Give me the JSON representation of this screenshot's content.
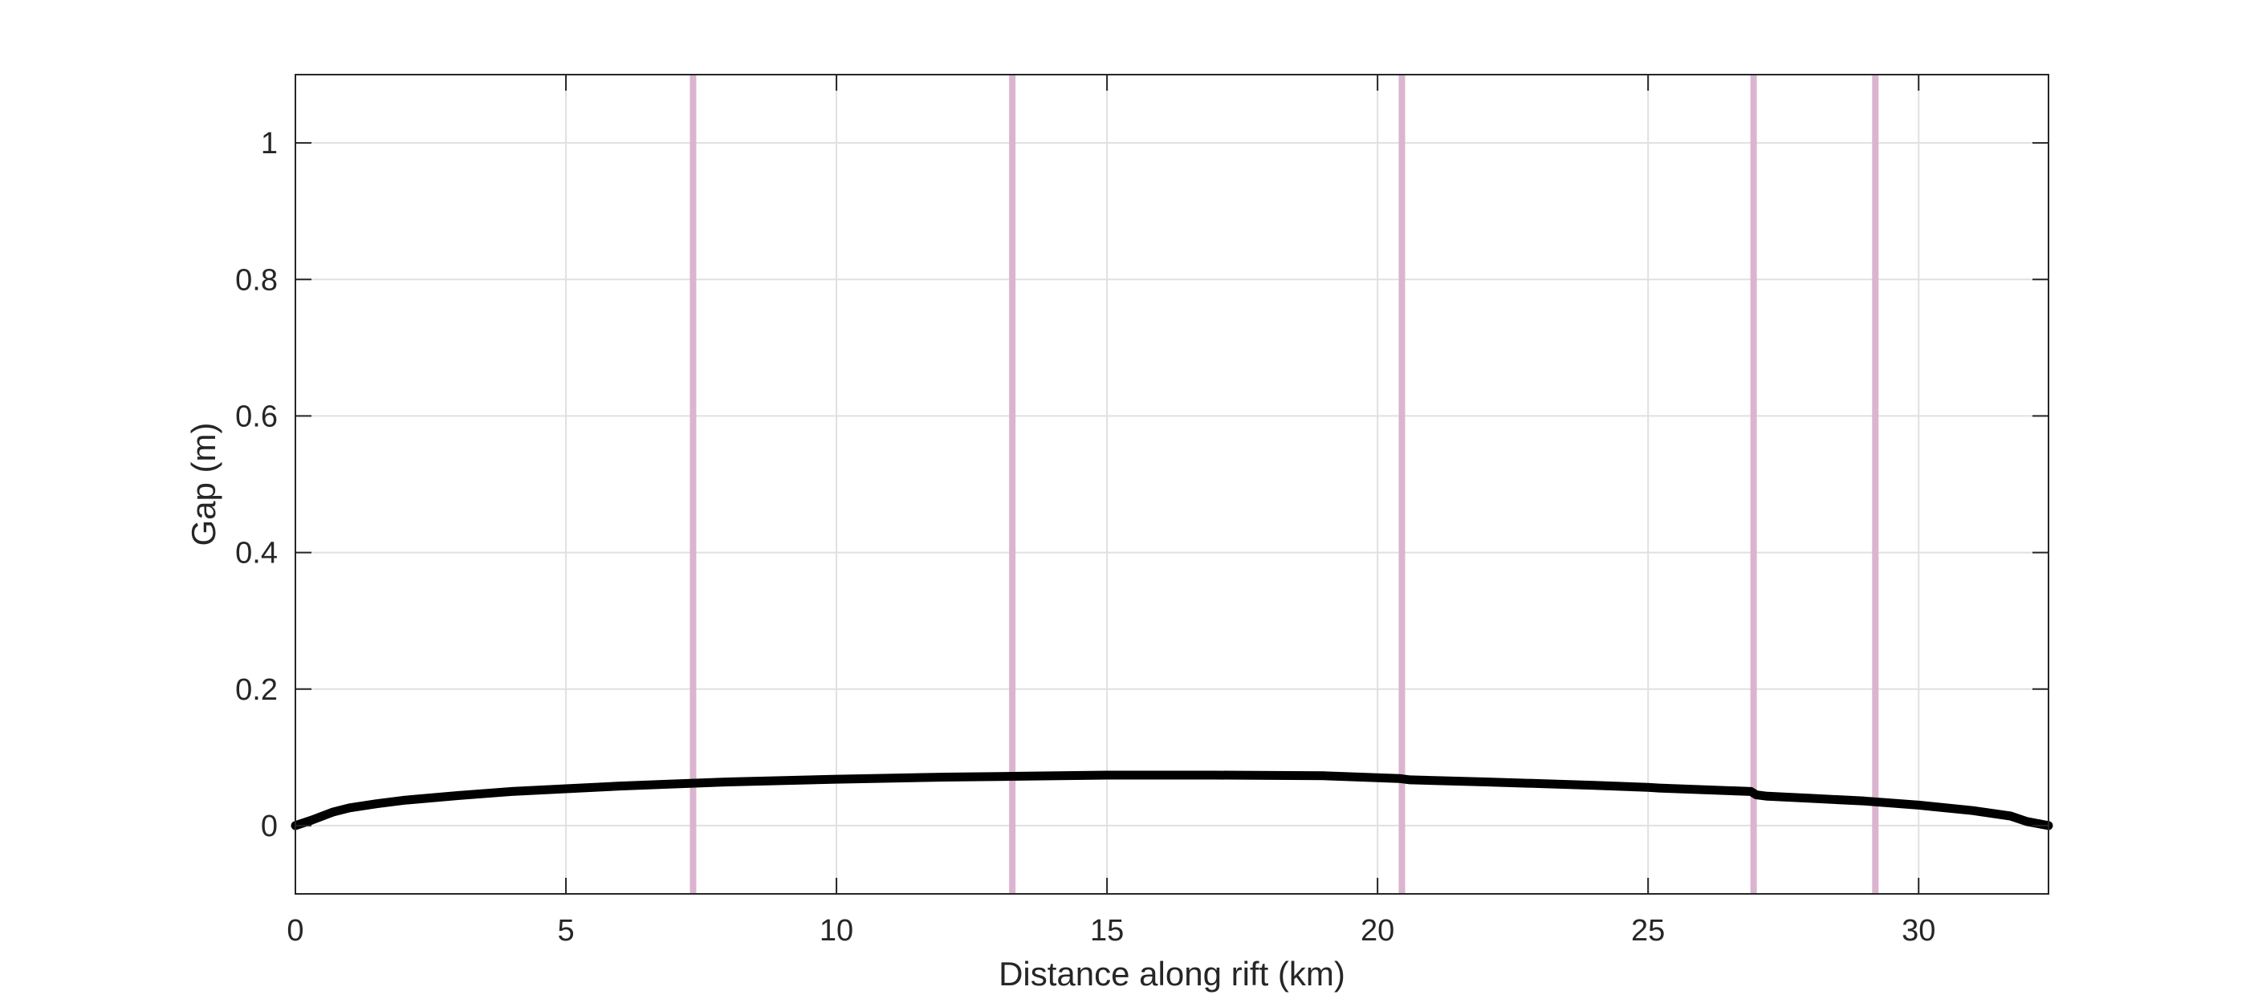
{
  "chart_data": {
    "type": "line",
    "title": "",
    "xlabel": "Distance along rift (km)",
    "ylabel": "Gap (m)",
    "xlim": [
      0,
      32.4
    ],
    "ylim": [
      -0.1,
      1.1
    ],
    "grid": true,
    "legend": "none",
    "x_ticks": [
      0,
      5,
      10,
      15,
      20,
      25,
      30
    ],
    "x_tick_labels": [
      "0",
      "5",
      "10",
      "15",
      "20",
      "25",
      "30"
    ],
    "y_ticks": [
      0,
      0.2,
      0.4,
      0.6,
      0.8,
      1
    ],
    "y_tick_labels": [
      "0",
      "0.2",
      "0.4",
      "0.6",
      "0.8",
      "1"
    ],
    "series": [
      {
        "color": "#000000",
        "x": [
          0,
          0.3,
          0.7,
          1,
          1.5,
          2,
          3,
          4,
          5,
          6,
          7,
          8,
          10,
          12,
          13,
          15,
          17,
          19,
          20.4,
          20.6,
          22,
          24,
          25,
          25.2,
          26.9,
          27,
          27.2,
          28,
          29,
          30,
          31,
          31.7,
          32,
          32.4
        ],
        "y": [
          0,
          0.008,
          0.02,
          0.026,
          0.032,
          0.037,
          0.044,
          0.05,
          0.054,
          0.058,
          0.061,
          0.064,
          0.068,
          0.071,
          0.072,
          0.074,
          0.074,
          0.073,
          0.069,
          0.067,
          0.064,
          0.059,
          0.056,
          0.055,
          0.05,
          0.045,
          0.043,
          0.04,
          0.036,
          0.03,
          0.022,
          0.014,
          0.006,
          0
        ]
      }
    ],
    "vertical_markers": {
      "color": "#dbb4cf",
      "x": [
        7.35,
        13.25,
        20.45,
        26.95,
        29.2
      ]
    }
  }
}
